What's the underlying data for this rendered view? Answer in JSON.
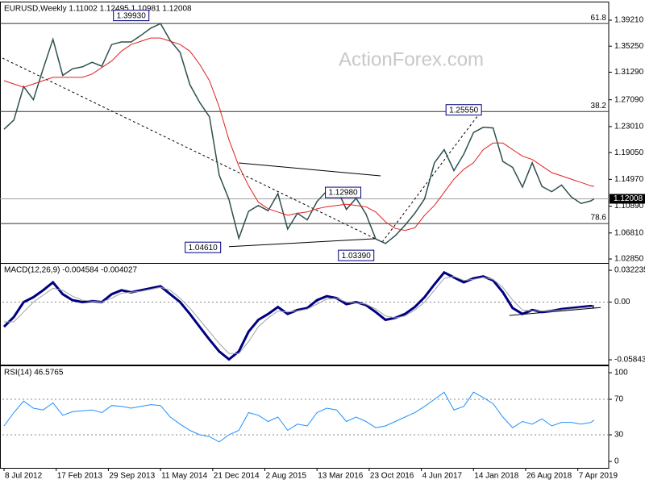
{
  "chart_data": {
    "type": "line",
    "xlim": [
      "2012-07-01",
      "2019-07-14"
    ],
    "xticks": [
      {
        "value": "2012-07-08",
        "label": "8 Jul 2012"
      },
      {
        "value": "2013-02-17",
        "label": "17 Feb 2013"
      },
      {
        "value": "2013-09-29",
        "label": "29 Sep 2013"
      },
      {
        "value": "2014-05-11",
        "label": "11 May 2014"
      },
      {
        "value": "2014-12-21",
        "label": "21 Dec 2014"
      },
      {
        "value": "2015-08-02",
        "label": "2 Aug 2015"
      },
      {
        "value": "2016-03-13",
        "label": "13 Mar 2016"
      },
      {
        "value": "2016-10-23",
        "label": "23 Oct 2016"
      },
      {
        "value": "2017-06-04",
        "label": "4 Jun 2017"
      },
      {
        "value": "2018-01-14",
        "label": "14 Jan 2018"
      },
      {
        "value": "2018-08-26",
        "label": "26 Aug 2018"
      },
      {
        "value": "2019-04-07",
        "label": "7 Apr 2019"
      }
    ],
    "x": [
      "2012-07-08",
      "2012-08-19",
      "2012-09-30",
      "2012-11-11",
      "2012-12-23",
      "2013-02-03",
      "2013-03-17",
      "2013-04-28",
      "2013-06-09",
      "2013-07-21",
      "2013-09-01",
      "2013-10-13",
      "2013-11-24",
      "2014-01-05",
      "2014-02-16",
      "2014-03-30",
      "2014-05-11",
      "2014-06-22",
      "2014-08-03",
      "2014-09-14",
      "2014-10-26",
      "2014-12-07",
      "2015-01-18",
      "2015-03-01",
      "2015-04-12",
      "2015-05-24",
      "2015-07-05",
      "2015-08-16",
      "2015-09-27",
      "2015-11-08",
      "2015-12-20",
      "2016-01-31",
      "2016-03-13",
      "2016-04-24",
      "2016-06-05",
      "2016-07-17",
      "2016-08-28",
      "2016-10-09",
      "2016-11-20",
      "2017-01-01",
      "2017-02-12",
      "2017-03-26",
      "2017-05-07",
      "2017-06-18",
      "2017-07-30",
      "2017-09-10",
      "2017-10-22",
      "2017-12-03",
      "2018-01-14",
      "2018-02-25",
      "2018-04-08",
      "2018-05-20",
      "2018-07-01",
      "2018-08-12",
      "2018-09-23",
      "2018-11-04",
      "2018-12-16",
      "2019-01-27",
      "2019-03-10",
      "2019-04-21",
      "2019-06-02",
      "2019-06-16"
    ],
    "watermark": "ActionForex.com",
    "panels": [
      {
        "title": "EURUSD,Weekly  1.11002 1.12495 1.10981 1.12008",
        "ylim": [
          1.0224,
          1.4179
        ],
        "yticks": [
          {
            "value": 1.3921,
            "label": "1.39210"
          },
          {
            "value": 1.3525,
            "label": "1.35250"
          },
          {
            "value": 1.3129,
            "label": "1.31290"
          },
          {
            "value": 1.2709,
            "label": "1.27090"
          },
          {
            "value": 1.2301,
            "label": "1.23010"
          },
          {
            "value": 1.1905,
            "label": "1.19050"
          },
          {
            "value": 1.1497,
            "label": "1.14970"
          },
          {
            "value": 1.1089,
            "label": "1.10890"
          },
          {
            "value": 1.0681,
            "label": "1.06810"
          },
          {
            "value": 1.0285,
            "label": "1.02850"
          }
        ],
        "series": [
          {
            "color": "#2f4f4f",
            "values": [
              1.226,
              1.24,
              1.291,
              1.271,
              1.318,
              1.363,
              1.308,
              1.318,
              1.321,
              1.328,
              1.322,
              1.355,
              1.359,
              1.359,
              1.369,
              1.38,
              1.387,
              1.361,
              1.343,
              1.294,
              1.267,
              1.245,
              1.156,
              1.119,
              1.06,
              1.101,
              1.11,
              1.102,
              1.128,
              1.074,
              1.098,
              1.088,
              1.116,
              1.132,
              1.136,
              1.104,
              1.121,
              1.097,
              1.059,
              1.052,
              1.064,
              1.08,
              1.098,
              1.12,
              1.175,
              1.195,
              1.163,
              1.188,
              1.221,
              1.229,
              1.228,
              1.177,
              1.168,
              1.138,
              1.175,
              1.139,
              1.131,
              1.141,
              1.123,
              1.113,
              1.117,
              1.12
            ]
          },
          {
            "color": "#e02020",
            "values": [
              1.3,
              1.295,
              1.29,
              1.295,
              1.3,
              1.305,
              1.305,
              1.305,
              1.305,
              1.31,
              1.32,
              1.33,
              1.345,
              1.355,
              1.36,
              1.365,
              1.365,
              1.36,
              1.355,
              1.345,
              1.325,
              1.3,
              1.26,
              1.21,
              1.17,
              1.14,
              1.115,
              1.105,
              1.1,
              1.095,
              1.098,
              1.1,
              1.105,
              1.108,
              1.11,
              1.112,
              1.11,
              1.108,
              1.1,
              1.085,
              1.075,
              1.072,
              1.076,
              1.095,
              1.11,
              1.13,
              1.15,
              1.165,
              1.175,
              1.195,
              1.205,
              1.205,
              1.195,
              1.185,
              1.18,
              1.17,
              1.16,
              1.155,
              1.15,
              1.145,
              1.14,
              1.139
            ]
          }
        ],
        "levels": [
          {
            "label": "61.8",
            "value": 1.387
          },
          {
            "label": "38.2",
            "value": 1.253
          },
          {
            "label": "78.6",
            "value": 1.0825
          }
        ],
        "price_label": {
          "label": "1.12008",
          "value": 1.12008
        },
        "boxes": [
          {
            "label": "1.39930",
            "x": "2014-01-05",
            "value": 1.3993
          },
          {
            "label": "1.25550",
            "x": "2017-12-03",
            "value": 1.2555
          },
          {
            "label": "1.04610",
            "x": "2014-11-09",
            "value": 1.0461
          },
          {
            "label": "1.03390",
            "x": "2016-08-28",
            "value": 1.0339
          },
          {
            "label": "1.12980",
            "x": "2016-07-03",
            "value": 1.1298
          }
        ],
        "trendlines": [
          {
            "x": [
              "2012-07-01",
              "2016-12-18"
            ],
            "values": [
              1.3344,
              1.0543
            ],
            "dashed": true
          },
          {
            "x": [
              "2016-12-18",
              "2018-02-18"
            ],
            "values": [
              1.0543,
              1.2545
            ],
            "dashed": true
          },
          {
            "x": [
              "2015-04-12",
              "2016-12-11"
            ],
            "values": [
              1.1747,
              1.1551
            ],
            "dashed": false
          },
          {
            "x": [
              "2015-03-01",
              "2016-11-20"
            ],
            "values": [
              1.0472,
              1.0594
            ],
            "dashed": false
          }
        ]
      },
      {
        "title": "MACD(12,26,9) -0.004584 -0.004027",
        "ylim": [
          -0.0633,
          0.038
        ],
        "yticks": [
          0.032235,
          {
            "value": 0,
            "label": "0.00"
          },
          -0.058434
        ],
        "dotted_levels": [
          0
        ],
        "series": [
          {
            "color": "#000080",
            "values": [
              -0.025,
              -0.015,
              0.0,
              0.005,
              0.012,
              0.02,
              0.008,
              0.002,
              0.0,
              0.001,
              0.0,
              0.008,
              0.012,
              0.01,
              0.012,
              0.014,
              0.016,
              0.008,
              0.0,
              -0.012,
              -0.025,
              -0.038,
              -0.05,
              -0.058,
              -0.05,
              -0.03,
              -0.018,
              -0.012,
              -0.005,
              -0.012,
              -0.008,
              -0.006,
              0.002,
              0.006,
              0.004,
              -0.002,
              0.0,
              -0.003,
              -0.01,
              -0.018,
              -0.016,
              -0.012,
              -0.005,
              0.005,
              0.018,
              0.03,
              0.025,
              0.02,
              0.024,
              0.026,
              0.022,
              0.01,
              -0.006,
              -0.012,
              -0.008,
              -0.01,
              -0.009,
              -0.007,
              -0.006,
              -0.005,
              -0.004,
              -0.004584
            ]
          },
          {
            "color": "#a0a0a0",
            "values": [
              -0.02,
              -0.02,
              -0.01,
              0.0,
              0.007,
              0.014,
              0.012,
              0.006,
              0.002,
              0.001,
              0.0,
              0.004,
              0.009,
              0.01,
              0.011,
              0.013,
              0.015,
              0.012,
              0.004,
              -0.006,
              -0.018,
              -0.03,
              -0.042,
              -0.052,
              -0.052,
              -0.04,
              -0.025,
              -0.016,
              -0.009,
              -0.01,
              -0.009,
              -0.007,
              -0.002,
              0.003,
              0.004,
              0.0,
              -0.001,
              -0.002,
              -0.007,
              -0.014,
              -0.016,
              -0.014,
              -0.008,
              0.0,
              0.012,
              0.024,
              0.026,
              0.022,
              0.023,
              0.025,
              0.023,
              0.015,
              0.002,
              -0.008,
              -0.009,
              -0.009,
              -0.009,
              -0.008,
              -0.007,
              -0.006,
              -0.005,
              -0.004027
            ]
          }
        ],
        "trendlines": [
          {
            "x": [
              "2018-06-17",
              "2019-07-14"
            ],
            "values": [
              -0.0135,
              -0.0055
            ],
            "dashed": false
          }
        ]
      },
      {
        "title": "RSI(14) 46.5765",
        "ylim": [
          -7.3,
          106.4
        ],
        "yticks": [
          100,
          70,
          30,
          0
        ],
        "dotted_levels": [
          70,
          30
        ],
        "series": [
          {
            "color": "#1e90ff",
            "values": [
              40,
              55,
              68,
              60,
              58,
              66,
              52,
              56,
              57,
              58,
              55,
              63,
              62,
              60,
              62,
              64,
              63,
              50,
              42,
              35,
              30,
              28,
              22,
              30,
              35,
              55,
              52,
              45,
              50,
              35,
              42,
              40,
              55,
              60,
              58,
              45,
              50,
              45,
              38,
              40,
              45,
              50,
              55,
              62,
              70,
              78,
              58,
              62,
              78,
              72,
              65,
              50,
              38,
              45,
              42,
              48,
              40,
              44,
              44,
              42,
              44,
              46.5765
            ]
          }
        ]
      }
    ]
  }
}
